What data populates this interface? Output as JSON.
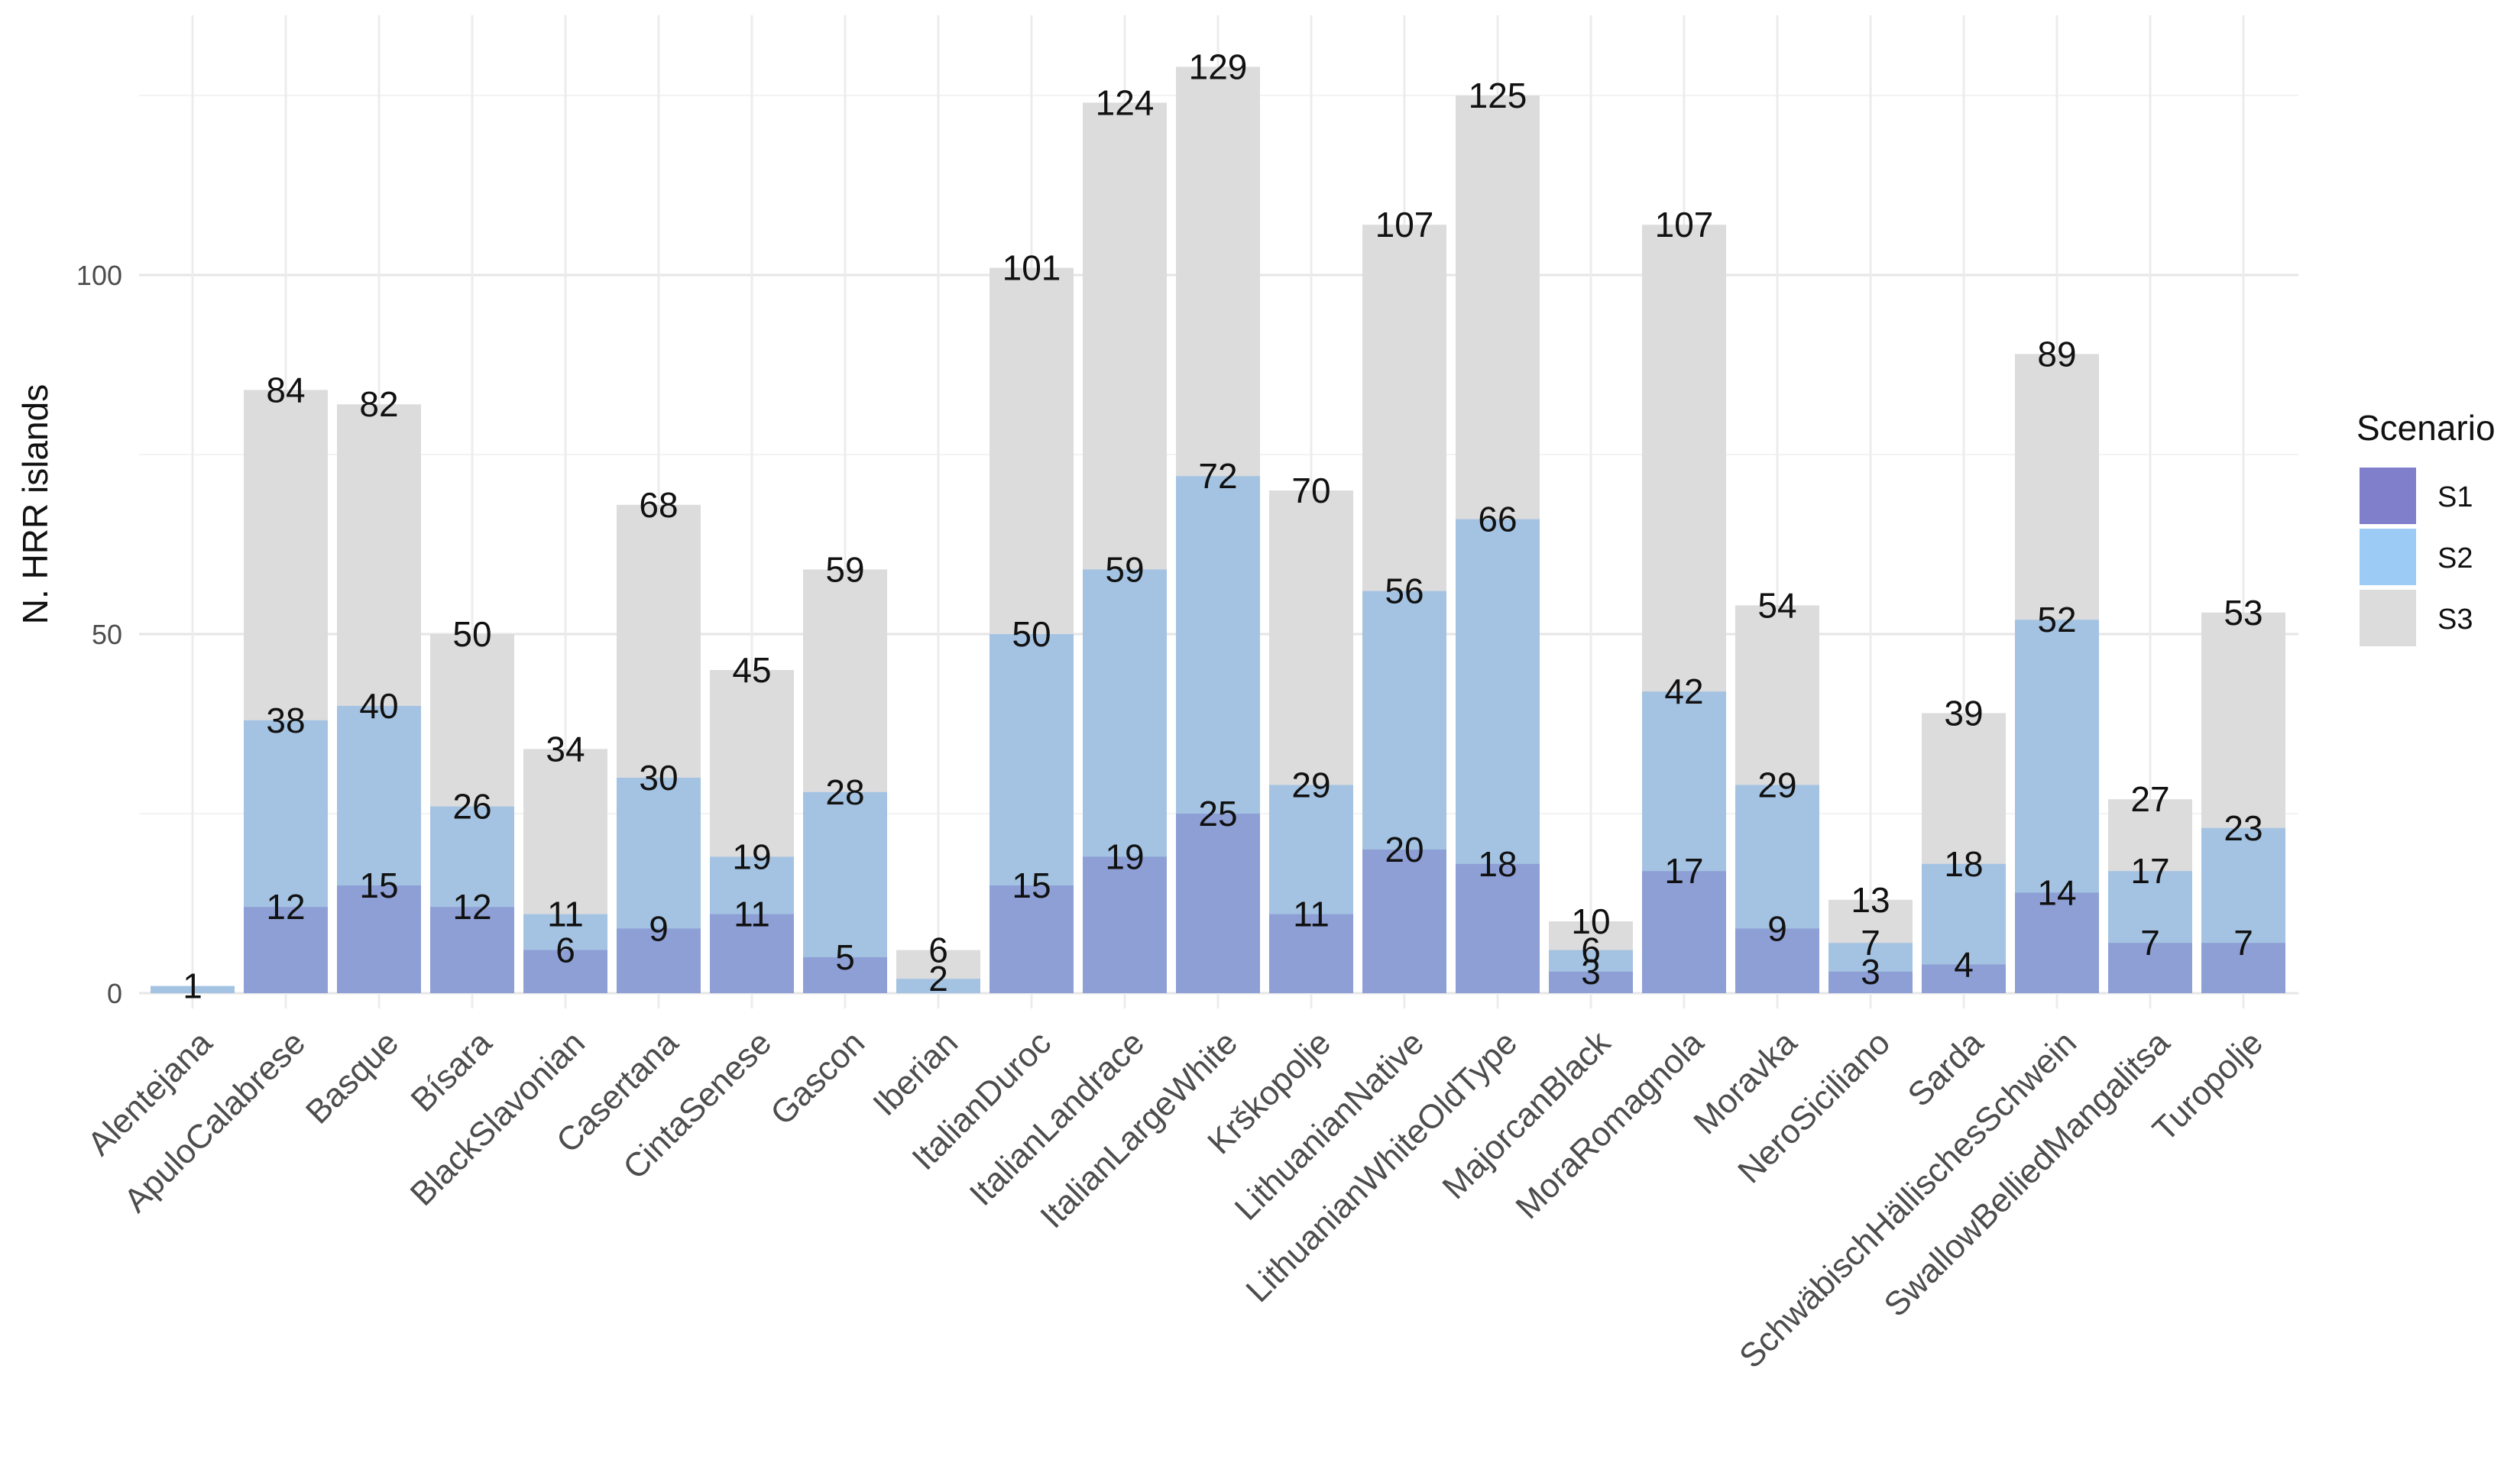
{
  "chart_data": {
    "type": "bar",
    "stacking": "overlay",
    "title": "",
    "xlabel": "",
    "ylabel": "N. HRR islands",
    "ylim": [
      0,
      135
    ],
    "yticks": [
      0,
      50,
      100
    ],
    "grid": true,
    "legend": {
      "title": "Scenario",
      "position": "right"
    },
    "categories": [
      "Alentejana",
      "ApuloCalabrese",
      "Basque",
      "Bísara",
      "BlackSlavonian",
      "Casertana",
      "CintaSenese",
      "Gascon",
      "Iberian",
      "ItalianDuroc",
      "ItalianLandrace",
      "ItalianLargeWhite",
      "Krškopolje",
      "LithuanianNative",
      "LithuanianWhiteOldType",
      "MajorcanBlack",
      "MoraRomagnola",
      "Moravka",
      "NeroSiciliano",
      "Sarda",
      "SchwäbischHällischesSchwein",
      "SwallowBelliedMangalitsa",
      "Turopolje"
    ],
    "series": [
      {
        "name": "S3",
        "color": "#dcdcdc",
        "values": [
          null,
          84,
          82,
          50,
          34,
          68,
          45,
          59,
          6,
          101,
          124,
          129,
          70,
          107,
          125,
          10,
          107,
          54,
          13,
          39,
          89,
          27,
          53
        ]
      },
      {
        "name": "S2",
        "color": "#a4c3e2",
        "values": [
          1,
          38,
          40,
          26,
          11,
          30,
          19,
          28,
          2,
          50,
          59,
          72,
          29,
          56,
          66,
          6,
          42,
          29,
          7,
          18,
          52,
          17,
          23
        ]
      },
      {
        "name": "S1",
        "color": "#8d9fd5",
        "values": [
          null,
          12,
          15,
          12,
          6,
          9,
          11,
          5,
          null,
          15,
          19,
          25,
          11,
          20,
          18,
          3,
          17,
          9,
          3,
          4,
          14,
          7,
          7
        ]
      }
    ],
    "legend_items": [
      {
        "name": "S1",
        "color": "#7f7fcc"
      },
      {
        "name": "S2",
        "color": "#9ccbf5"
      },
      {
        "name": "S3",
        "color": "#dcdcdc"
      }
    ]
  }
}
